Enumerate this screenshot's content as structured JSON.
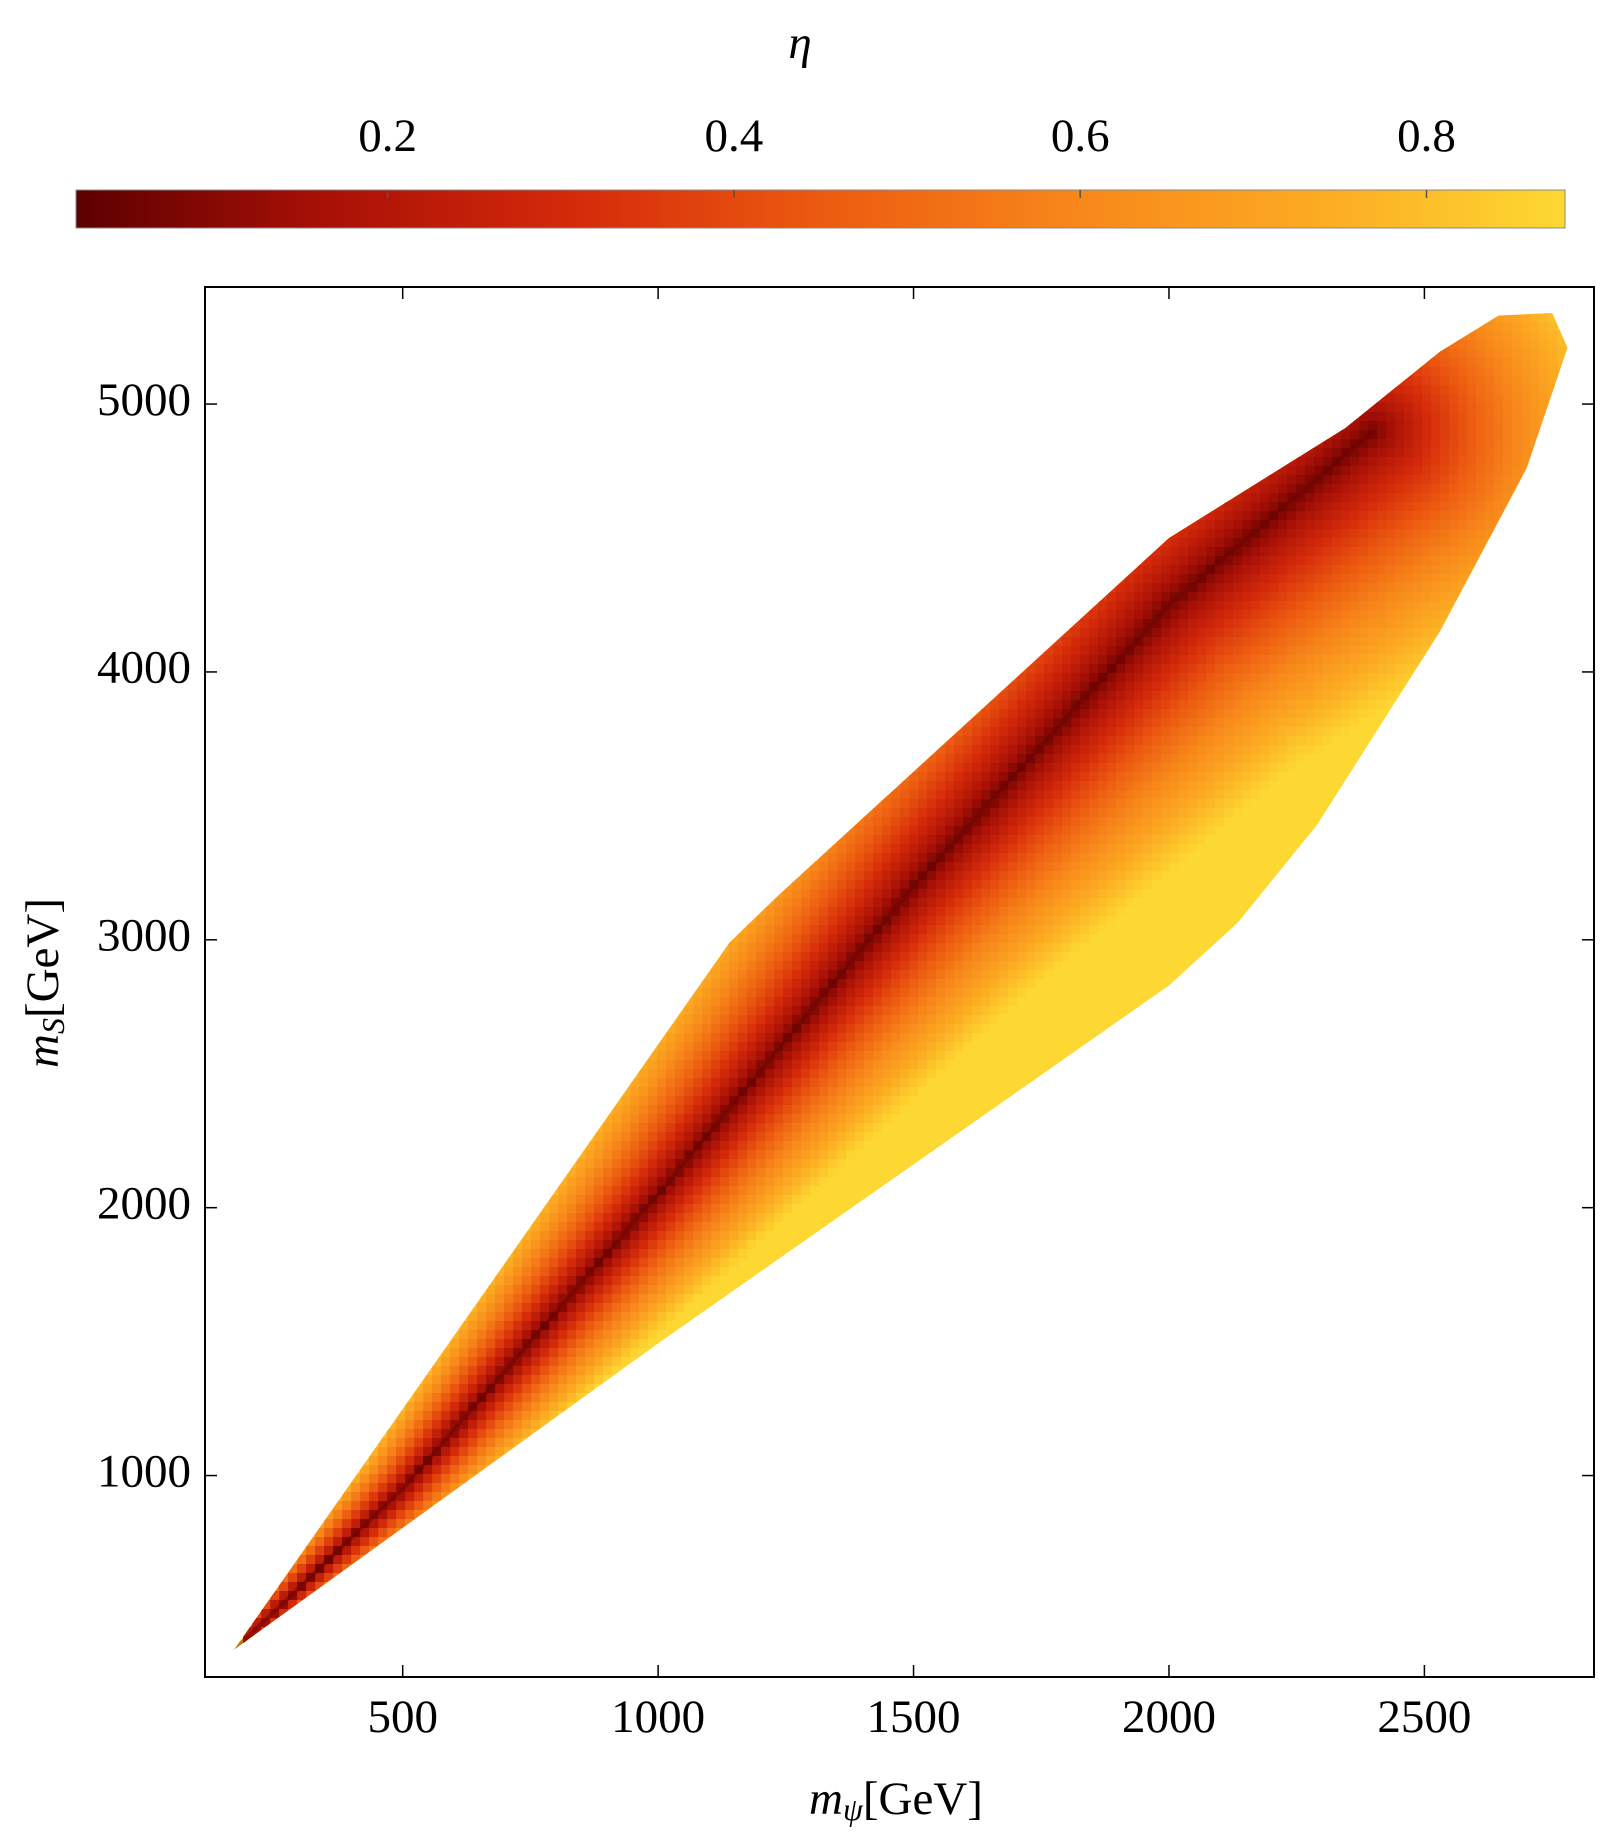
{
  "chart_data": {
    "type": "density",
    "xlabel": "mψ[GeV]",
    "ylabel": "mS[GeV]",
    "xlim": [
      113,
      2832
    ],
    "ylim": [
      248,
      5437
    ],
    "xticks": [
      500,
      1000,
      1500,
      2000,
      2500
    ],
    "yticks": [
      1000,
      2000,
      3000,
      4000,
      5000
    ],
    "region": {
      "x": [
        170,
        1140,
        1235,
        2000,
        2345,
        2530,
        2645,
        2750,
        2780,
        2700,
        2530,
        2290,
        2135,
        2000,
        1000
      ],
      "y": [
        350,
        2990,
        3165,
        4500,
        4910,
        5195,
        5330,
        5340,
        5210,
        4760,
        4150,
        3430,
        3065,
        2830,
        1494
      ]
    },
    "ridge": {
      "x": [
        170,
        500,
        1000,
        1500,
        2000,
        2400
      ],
      "y": [
        350,
        950,
        2050,
        3200,
        4250,
        4900
      ]
    },
    "colorbar": {
      "label": "η",
      "lim": [
        0.02,
        0.88
      ],
      "ticks": [
        0.2,
        0.4,
        0.6,
        0.8
      ],
      "colors": [
        "#5c0000",
        "#a81006",
        "#d42a0a",
        "#ec5a10",
        "#f7861a",
        "#fcaa22",
        "#fdd832"
      ]
    }
  }
}
